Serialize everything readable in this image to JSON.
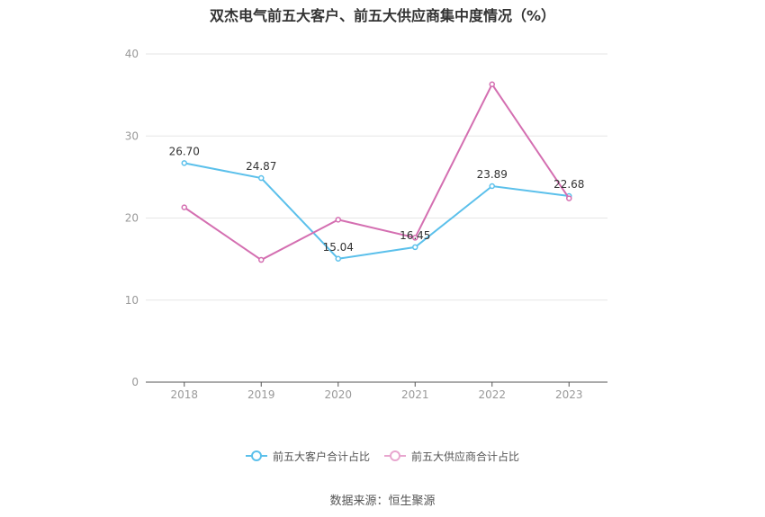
{
  "chart_data": {
    "type": "line",
    "title": "双杰电气前五大客户、前五大供应商集中度情况（%）",
    "categories": [
      "2018",
      "2019",
      "2020",
      "2021",
      "2022",
      "2023"
    ],
    "ylim": [
      0,
      40
    ],
    "yticks": [
      0,
      10,
      20,
      30,
      40
    ],
    "grid": true,
    "legend_position": "bottom",
    "series": [
      {
        "name": "前五大客户合计占比",
        "values": [
          26.7,
          24.87,
          15.04,
          16.45,
          23.89,
          22.68
        ],
        "labels": [
          "26.70",
          "24.87",
          "15.04",
          "16.45",
          "23.89",
          "22.68"
        ],
        "color": "#5bc0eb"
      },
      {
        "name": "前五大供应商合计占比",
        "values": [
          21.3,
          14.9,
          19.8,
          17.6,
          36.3,
          22.4
        ],
        "color": "#d46fb1"
      }
    ]
  },
  "source": "数据来源：恒生聚源"
}
